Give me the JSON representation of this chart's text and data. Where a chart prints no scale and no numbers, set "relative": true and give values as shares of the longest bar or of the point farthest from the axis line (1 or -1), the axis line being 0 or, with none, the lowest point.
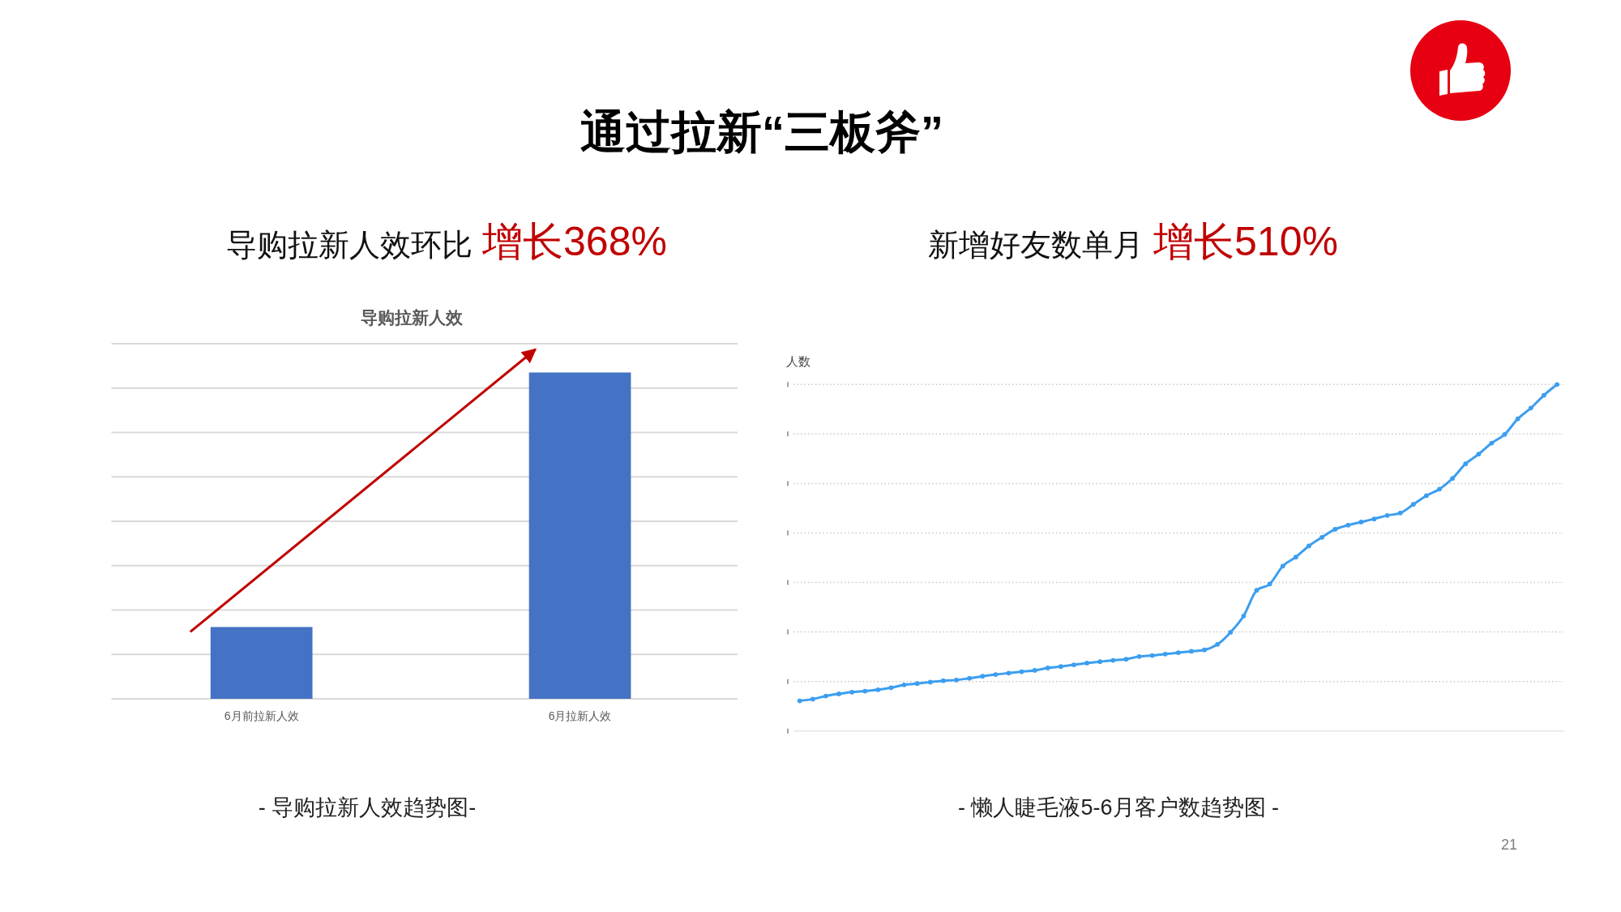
{
  "chart_data": [
    {
      "type": "bar",
      "title": "导购拉新人效",
      "categories": [
        "6月前拉新人效",
        "6月拉新人效"
      ],
      "values": [
        0.22,
        1
      ],
      "color": "#4472c4",
      "relative": true,
      "grid": "y",
      "annotations": [
        "通过拉新“三板斧”",
        "导购拉新人效环比",
        "增长368%",
        "- 导购拉新人效趋势图-",
        "21"
      ]
    },
    {
      "type": "line",
      "ylabel": "人数",
      "relative": true,
      "grid": "y",
      "marker": "circle",
      "line_style": "solid",
      "categories": [
        null,
        null,
        null,
        null,
        null,
        null,
        null,
        null,
        null,
        null,
        null,
        null,
        null,
        null,
        null,
        null,
        null,
        null,
        null,
        null,
        null,
        null,
        null,
        null,
        null,
        null,
        null,
        null,
        null,
        null,
        null,
        null,
        null,
        null,
        null,
        null,
        null,
        null,
        null,
        null,
        null,
        null,
        null,
        null,
        null,
        null,
        null,
        null,
        null,
        null,
        null,
        null,
        null,
        null,
        null,
        null,
        null,
        null,
        null
      ],
      "series": [
        {
          "color": "#3c9eef",
          "values": [
            0.087,
            0.092,
            0.101,
            0.107,
            0.112,
            0.115,
            0.119,
            0.125,
            0.133,
            0.137,
            0.141,
            0.145,
            0.147,
            0.152,
            0.158,
            0.163,
            0.167,
            0.171,
            0.175,
            0.182,
            0.186,
            0.191,
            0.196,
            0.2,
            0.204,
            0.207,
            0.215,
            0.218,
            0.222,
            0.226,
            0.23,
            0.234,
            0.25,
            0.285,
            0.332,
            0.406,
            0.424,
            0.476,
            0.502,
            0.534,
            0.559,
            0.582,
            0.594,
            0.603,
            0.612,
            0.622,
            0.629,
            0.654,
            0.679,
            0.698,
            0.729,
            0.771,
            0.799,
            0.831,
            0.856,
            0.901,
            0.932,
            0.969,
            1
          ]
        }
      ],
      "annotations": [
        "新增好友数单月",
        "增长510%",
        "- 懒人睫毛液5-6月客户数趋势图 -"
      ]
    }
  ]
}
